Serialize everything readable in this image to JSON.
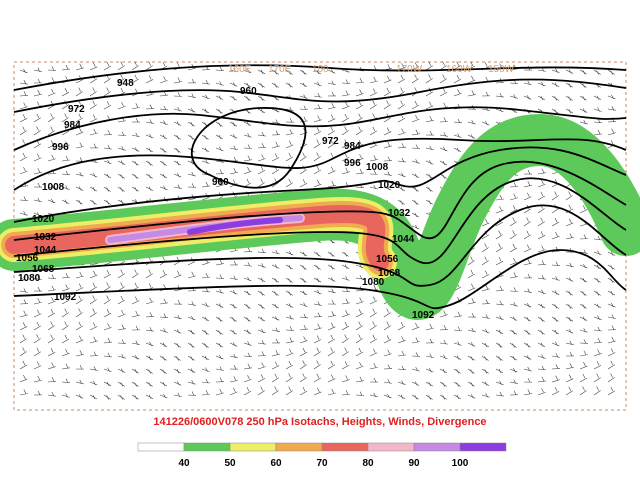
{
  "map": {
    "title": "141226/0600V078 250 hPa Isotachs, Heights, Winds, Divergence",
    "longitude_labels": [
      "160E",
      "170E",
      "180",
      "170W",
      "160W",
      "150W"
    ],
    "contour_labels": [
      "948",
      "960",
      "972",
      "984",
      "996",
      "1008",
      "960",
      "972",
      "984",
      "996",
      "1008",
      "1020",
      "1032",
      "1044",
      "1056",
      "1068",
      "1080",
      "1092",
      "1020",
      "1032",
      "1044",
      "1056",
      "1068",
      "1080",
      "1092"
    ],
    "colorbar": {
      "colors": [
        "#ffffff",
        "#5dc95a",
        "#eeee66",
        "#f0aa50",
        "#e8665e",
        "#f4b6c8",
        "#c48ae4",
        "#8a3ee0"
      ],
      "labels": [
        "40",
        "50",
        "60",
        "70",
        "80",
        "90",
        "100"
      ]
    }
  }
}
